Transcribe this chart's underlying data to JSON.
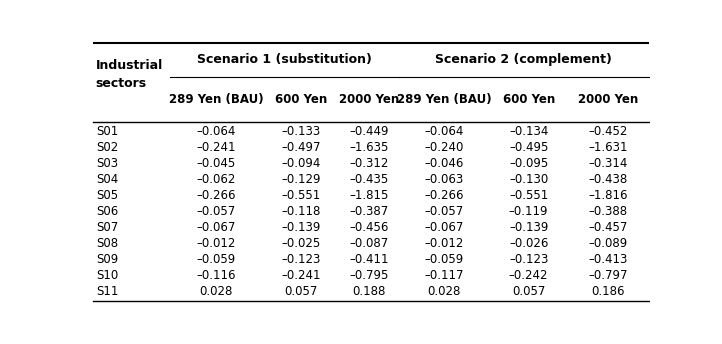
{
  "scenario1_label": "Scenario 1 (substitution)",
  "scenario2_label": "Scenario 2 (complement)",
  "col_label": "Industrial\nsectors",
  "sub_headers": [
    "289 Yen (BAU)",
    "600 Yen",
    "2000 Yen",
    "289 Yen (BAU)",
    "600 Yen",
    "2000 Yen"
  ],
  "rows": [
    [
      "S01",
      "–0.064",
      "–0.133",
      "–0.449",
      "–0.064",
      "–0.134",
      "–0.452"
    ],
    [
      "S02",
      "–0.241",
      "–0.497",
      "–1.635",
      "–0.240",
      "–0.495",
      "–1.631"
    ],
    [
      "S03",
      "–0.045",
      "–0.094",
      "–0.312",
      "–0.046",
      "–0.095",
      "–0.314"
    ],
    [
      "S04",
      "–0.062",
      "–0.129",
      "–0.435",
      "–0.063",
      "–0.130",
      "–0.438"
    ],
    [
      "S05",
      "–0.266",
      "–0.551",
      "–1.815",
      "–0.266",
      "–0.551",
      "–1.816"
    ],
    [
      "S06",
      "–0.057",
      "–0.118",
      "–0.387",
      "–0.057",
      "–0.119",
      "–0.388"
    ],
    [
      "S07",
      "–0.067",
      "–0.139",
      "–0.456",
      "–0.067",
      "–0.139",
      "–0.457"
    ],
    [
      "S08",
      "–0.012",
      "–0.025",
      "–0.087",
      "–0.012",
      "–0.026",
      "–0.089"
    ],
    [
      "S09",
      "–0.059",
      "–0.123",
      "–0.411",
      "–0.059",
      "–0.123",
      "–0.413"
    ],
    [
      "S10",
      "–0.116",
      "–0.241",
      "–0.795",
      "–0.117",
      "–0.242",
      "–0.797"
    ],
    [
      "S11",
      "0.028",
      "0.057",
      "0.188",
      "0.028",
      "0.057",
      "0.186"
    ]
  ],
  "background_color": "#ffffff",
  "text_color": "#000000",
  "font_size": 8.5,
  "header_font_size": 9.0,
  "subheader_font_size": 8.5
}
